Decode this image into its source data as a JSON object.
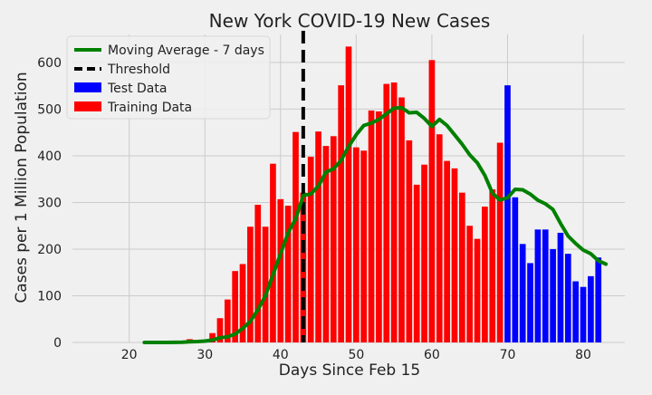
{
  "chart_data": {
    "type": "bar",
    "title": "New York COVID-19 New Cases",
    "xlabel": "Days Since Feb 15",
    "ylabel": "Cases per 1 Million Population",
    "xlim": [
      12.5,
      85.5
    ],
    "ylim": [
      0,
      660
    ],
    "xticks": [
      20,
      30,
      40,
      50,
      60,
      70,
      80
    ],
    "yticks": [
      0,
      100,
      200,
      300,
      400,
      500,
      600
    ],
    "grid": true,
    "legend_position": "top-left",
    "colors": {
      "background": "#f0f0f0",
      "grid": "#cbcbcb",
      "training": "#ff0000",
      "test": "#0000ff",
      "moving_average": "#008000",
      "threshold": "#000000"
    },
    "series": [
      {
        "name": "Training Data",
        "kind": "bar",
        "x": [
          22,
          23,
          24,
          25,
          26,
          27,
          28,
          29,
          30,
          31,
          32,
          33,
          34,
          35,
          36,
          37,
          38,
          39,
          40,
          41,
          42,
          43,
          44,
          45,
          46,
          47,
          48,
          49,
          50,
          51,
          52,
          53,
          54,
          55,
          56,
          57,
          58,
          59,
          60,
          61,
          62,
          63,
          64,
          65,
          66,
          67,
          68,
          69
        ],
        "values": [
          0,
          0,
          0,
          0,
          1,
          2,
          7,
          3,
          6,
          20,
          52,
          92,
          153,
          168,
          248,
          295,
          248,
          383,
          307,
          293,
          451,
          321,
          398,
          452,
          421,
          442,
          551,
          634,
          418,
          411,
          497,
          495,
          554,
          557,
          525,
          433,
          338,
          381,
          605,
          446,
          389,
          373,
          321,
          250,
          222,
          291,
          328,
          428
        ]
      },
      {
        "name": "Test Data",
        "kind": "bar",
        "x": [
          70,
          71,
          72,
          73,
          74,
          75,
          76,
          77,
          78,
          79,
          80,
          81,
          82
        ],
        "values": [
          551,
          311,
          211,
          170,
          242,
          242,
          200,
          235,
          190,
          131,
          119,
          142,
          182
        ]
      },
      {
        "name": "Moving Average - 7 days",
        "kind": "line",
        "x": [
          22,
          23,
          24,
          25,
          26,
          27,
          28,
          29,
          30,
          31,
          32,
          33,
          34,
          35,
          36,
          37,
          38,
          39,
          40,
          41,
          42,
          43,
          44,
          45,
          46,
          47,
          48,
          49,
          50,
          51,
          52,
          53,
          54,
          55,
          56,
          57,
          58,
          59,
          60,
          61,
          62,
          63,
          64,
          65,
          66,
          67,
          68,
          69,
          70,
          71,
          72,
          73,
          74,
          75,
          76,
          77,
          78,
          79,
          80,
          81,
          82,
          83
        ],
        "values": [
          0,
          0,
          0,
          0,
          0.2,
          0.5,
          1.5,
          2,
          3,
          5,
          10,
          12,
          18,
          30,
          45,
          70,
          100,
          145,
          190,
          235,
          265,
          315,
          318,
          335,
          365,
          372,
          390,
          420,
          445,
          465,
          470,
          478,
          490,
          502,
          503,
          492,
          493,
          480,
          463,
          478,
          465,
          445,
          425,
          402,
          385,
          358,
          320,
          305,
          310,
          328,
          327,
          318,
          305,
          297,
          285,
          255,
          228,
          212,
          198,
          190,
          175,
          168
        ]
      },
      {
        "name": "Threshold",
        "kind": "vline",
        "x": 43
      }
    ]
  }
}
